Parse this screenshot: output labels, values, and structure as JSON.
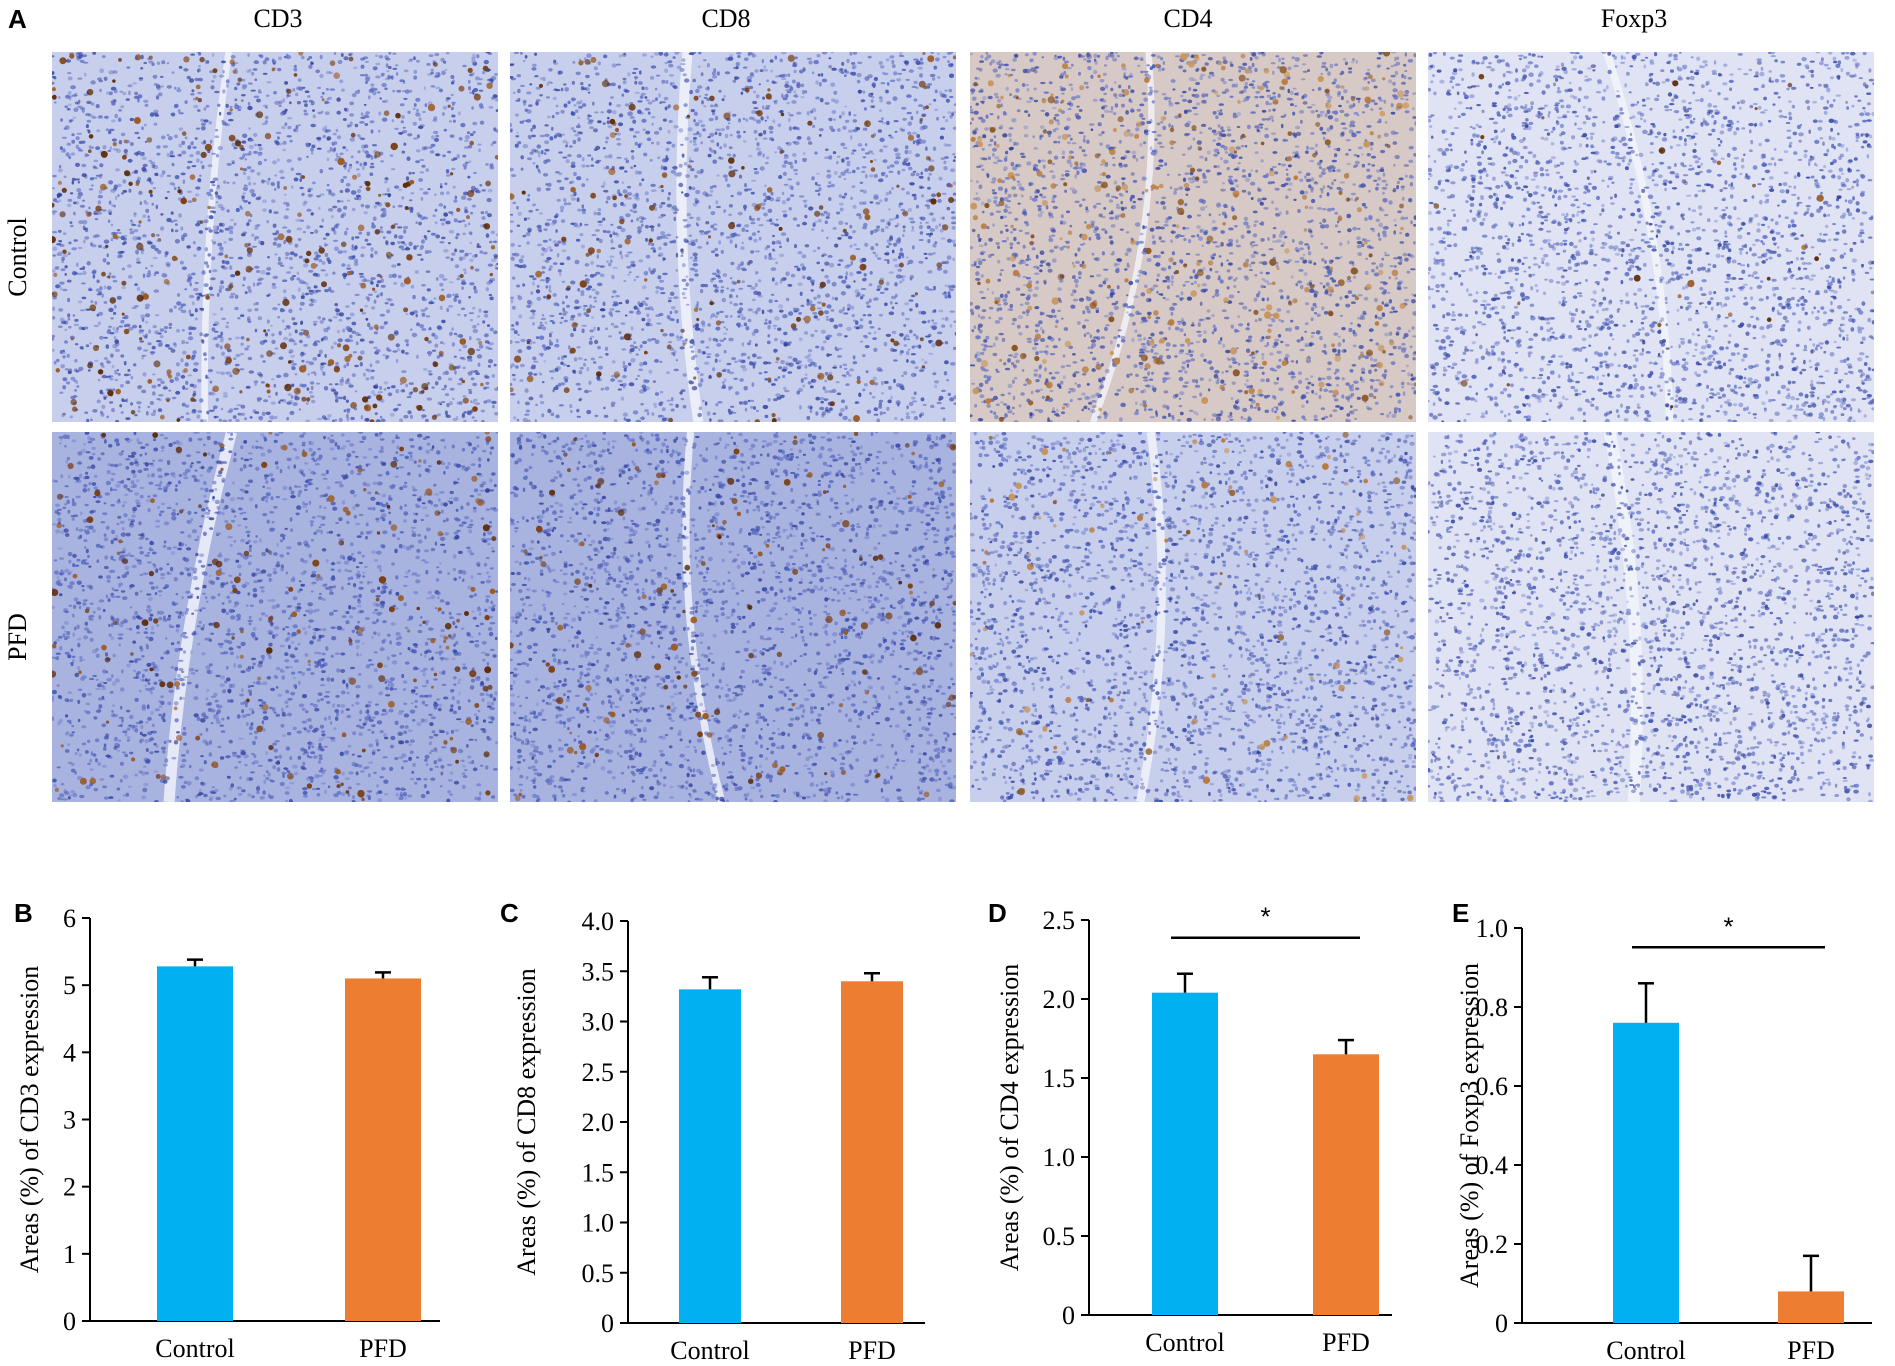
{
  "panel_a": {
    "letter": "A",
    "columns": [
      "CD3",
      "CD8",
      "CD4",
      "Foxp3"
    ],
    "rows": [
      "Control",
      "PFD"
    ]
  },
  "chart_data": [
    {
      "letter": "B",
      "type": "bar",
      "categories": [
        "Control",
        "PFD"
      ],
      "values": [
        5.28,
        5.1
      ],
      "errors": [
        0.1,
        0.09
      ],
      "ylabel": "Areas (%) of CD3 expression",
      "ylim": [
        0,
        6
      ],
      "yticks": [
        0,
        1,
        2,
        3,
        4,
        5,
        6
      ],
      "significance": ""
    },
    {
      "letter": "C",
      "type": "bar",
      "categories": [
        "Control",
        "PFD"
      ],
      "values": [
        3.32,
        3.4
      ],
      "errors": [
        0.12,
        0.08
      ],
      "ylabel": "Areas (%) of CD8 expression",
      "ylim": [
        0,
        4
      ],
      "yticks": [
        0,
        0.5,
        1.0,
        1.5,
        2.0,
        2.5,
        3.0,
        3.5,
        4.0
      ],
      "significance": ""
    },
    {
      "letter": "D",
      "type": "bar",
      "categories": [
        "Control",
        "PFD"
      ],
      "values": [
        2.04,
        1.65
      ],
      "errors": [
        0.12,
        0.09
      ],
      "ylabel": "Areas (%) of CD4 expression",
      "ylim": [
        0,
        2.5
      ],
      "yticks": [
        0,
        0.5,
        1.0,
        1.5,
        2.0,
        2.5
      ],
      "significance": "*"
    },
    {
      "letter": "E",
      "type": "bar",
      "categories": [
        "Control",
        "PFD"
      ],
      "values": [
        0.76,
        0.08
      ],
      "errors": [
        0.1,
        0.09
      ],
      "ylabel": "Areas (%) of Foxp3 expression",
      "ylim": [
        0,
        1.0
      ],
      "yticks": [
        0,
        0.2,
        0.4,
        0.6,
        0.8,
        1.0
      ],
      "significance": "*"
    }
  ],
  "colors": {
    "control_bar": "#00b0f0",
    "pfd_bar": "#ed7d31",
    "tissue_base": "#c9d0ec",
    "nuclei": "#3c4fb0",
    "stain_brown": "#7a3f12",
    "stain_light": "#c8955a"
  }
}
